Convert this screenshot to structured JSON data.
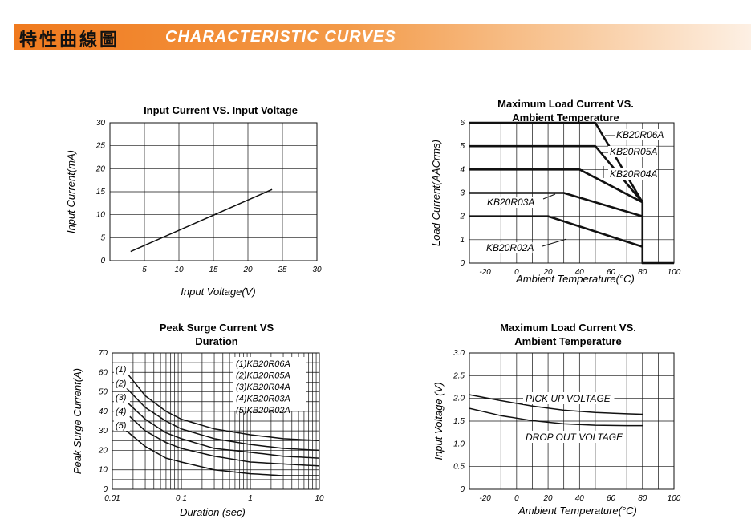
{
  "header": {
    "title_cjk": "特性曲線圖",
    "title_en": "CHARACTERISTIC  CURVES"
  },
  "colors": {
    "banner_start": "#f07a1e",
    "banner_end": "#fdf0e4",
    "line": "#111111",
    "grid": "#111111"
  },
  "chart_data": [
    {
      "id": "input-current",
      "type": "line",
      "title": "Input Current VS. Input Voltage",
      "xlabel": "Input  Voltage(V)",
      "ylabel": "Input Current(mA)",
      "xlim": [
        0,
        30
      ],
      "ylim": [
        0,
        30
      ],
      "x_ticks": [
        5,
        10,
        15,
        20,
        25,
        30
      ],
      "x_tick_labels": [
        "5",
        "10",
        "15",
        "20",
        "25",
        "30"
      ],
      "y_ticks": [
        0,
        5,
        10,
        15,
        20,
        25,
        30
      ],
      "y_tick_labels": [
        "0",
        "5",
        "10",
        "15",
        "20",
        "25",
        "30"
      ],
      "grid": true,
      "series": [
        {
          "x": [
            3,
            23.5
          ],
          "y": [
            2,
            15.5
          ]
        }
      ]
    },
    {
      "id": "max-load-current",
      "type": "line",
      "title": "Maximum Load Current VS. Ambient  Temperature",
      "xlabel": "Ambient Temperature(°C)",
      "ylabel": "Load Current(AACrms)",
      "xlim": [
        -30,
        100
      ],
      "ylim": [
        0,
        6
      ],
      "x_ticks": [
        -20,
        0,
        20,
        40,
        60,
        80,
        100
      ],
      "x_tick_labels": [
        "-20",
        "0",
        "20",
        "40",
        "60",
        "80",
        "100"
      ],
      "y_ticks": [
        0,
        1,
        2,
        3,
        4,
        5,
        6
      ],
      "y_tick_labels": [
        "0",
        "1",
        "2",
        "3",
        "4",
        "5",
        "6"
      ],
      "grid": true,
      "series": [
        {
          "name": "KB20R06A",
          "x": [
            -30,
            50,
            80,
            80,
            100
          ],
          "y": [
            6,
            6,
            2.6,
            0,
            0
          ]
        },
        {
          "name": "KB20R05A",
          "x": [
            -30,
            50,
            80
          ],
          "y": [
            5,
            5,
            2.6
          ]
        },
        {
          "name": "KB20R04A",
          "x": [
            -30,
            40,
            80
          ],
          "y": [
            4,
            4,
            2.6
          ]
        },
        {
          "name": "KB20R03A",
          "x": [
            -30,
            30,
            80
          ],
          "y": [
            3,
            3,
            2
          ]
        },
        {
          "name": "KB20R02A",
          "x": [
            -30,
            20,
            80
          ],
          "y": [
            2,
            2,
            0.7
          ]
        }
      ]
    },
    {
      "id": "peak-surge",
      "type": "line",
      "title": "Peak Surge Current VS Duration",
      "xlabel": "Duration (sec)",
      "ylabel": "Peak Surge Current(A)",
      "xscale": "log",
      "xlim": [
        0.01,
        10
      ],
      "ylim": [
        0,
        70
      ],
      "x_ticks": [
        0.01,
        0.1,
        1,
        10
      ],
      "x_tick_labels": [
        "0.01",
        "0.1",
        "1",
        "10"
      ],
      "y_ticks": [
        0,
        10,
        20,
        30,
        40,
        50,
        60,
        70
      ],
      "y_tick_labels": [
        "0",
        "10",
        "20",
        "30",
        "40",
        "50",
        "60",
        "70"
      ],
      "grid": true,
      "legend_lines": [
        "(1)KB20R06A",
        "(2)KB20R05A",
        "(3)KB20R04A",
        "(4)KB20R03A",
        "(5)KB20R02A"
      ],
      "series": [
        {
          "name": "(1)",
          "x": [
            0.016,
            0.03,
            0.06,
            0.1,
            0.3,
            1,
            3,
            10
          ],
          "y": [
            60,
            48,
            40,
            36,
            31,
            28,
            26,
            25
          ]
        },
        {
          "name": "(2)",
          "x": [
            0.016,
            0.03,
            0.06,
            0.1,
            0.3,
            1,
            3,
            10
          ],
          "y": [
            52,
            42,
            35,
            31,
            26,
            23,
            21,
            20
          ]
        },
        {
          "name": "(3)",
          "x": [
            0.016,
            0.03,
            0.06,
            0.1,
            0.3,
            1,
            3,
            10
          ],
          "y": [
            45,
            36,
            29,
            26,
            21,
            19,
            17,
            16
          ]
        },
        {
          "name": "(4)",
          "x": [
            0.016,
            0.03,
            0.06,
            0.1,
            0.3,
            1,
            3,
            10
          ],
          "y": [
            39,
            30,
            24,
            21,
            17,
            14,
            13,
            12
          ]
        },
        {
          "name": "(5)",
          "x": [
            0.016,
            0.03,
            0.06,
            0.1,
            0.3,
            1,
            3,
            10
          ],
          "y": [
            30,
            22,
            16,
            14,
            10,
            8,
            7,
            7
          ]
        }
      ],
      "series_tags": [
        "(1)",
        "(2)",
        "(3)",
        "(4)",
        "(5)"
      ]
    },
    {
      "id": "input-voltage-temp",
      "type": "line",
      "title": "Maximum Load Current VS. Ambient  Temperature",
      "xlabel": "Ambient Temperature(°C)",
      "ylabel": "Input Voltage (V)",
      "xlim": [
        -30,
        100
      ],
      "ylim": [
        0,
        3
      ],
      "x_ticks": [
        -20,
        0,
        20,
        40,
        60,
        80,
        100
      ],
      "x_tick_labels": [
        "-20",
        "0",
        "20",
        "40",
        "60",
        "80",
        "100"
      ],
      "y_ticks": [
        0,
        0.5,
        1,
        1.5,
        2,
        2.5,
        3
      ],
      "y_tick_labels": [
        "0",
        "0.5",
        "1.0",
        "1.5",
        "2.0",
        "2.5",
        "3.0"
      ],
      "grid": true,
      "series": [
        {
          "name": "PICK UP VOLTAGE",
          "x": [
            -30,
            -10,
            10,
            30,
            50,
            70,
            80
          ],
          "y": [
            2.08,
            1.95,
            1.83,
            1.74,
            1.69,
            1.66,
            1.65
          ]
        },
        {
          "name": "DROP OUT VOLTAGE",
          "x": [
            -30,
            -10,
            10,
            30,
            50,
            70,
            80
          ],
          "y": [
            1.78,
            1.62,
            1.51,
            1.44,
            1.41,
            1.4,
            1.4
          ]
        }
      ]
    }
  ]
}
